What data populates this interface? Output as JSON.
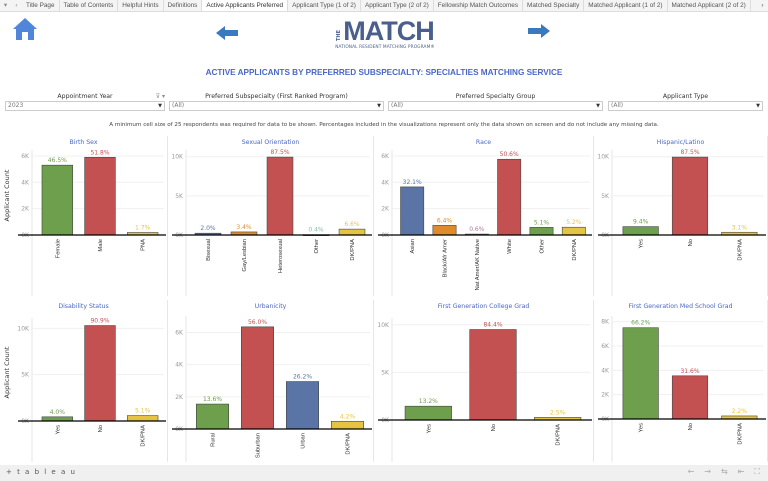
{
  "tabs": {
    "items": [
      "Title Page",
      "Table of Contents",
      "Helpful Hints",
      "Definitions",
      "Active Applicants Preferred",
      "Applicant Type (1 of 2)",
      "Applicant Type (2 of 2)",
      "Fellowship Match Outcomes",
      "Matched Specialty",
      "Matched Applicant (1 of 2)",
      "Matched Applicant (2 of 2)"
    ],
    "active": 4
  },
  "logo": {
    "the": "THE",
    "main": "MATCH",
    "sub": "NATIONAL RESIDENT MATCHING PROGRAM®"
  },
  "page_title": "ACTIVE APPLICANTS BY PREFERRED SUBSPECIALTY: SPECIALTIES MATCHING SERVICE",
  "filters": [
    {
      "label": "Appointment Year",
      "value": "2023"
    },
    {
      "label": "Preferred Subspecialty (First Ranked Program)",
      "value": "(All)"
    },
    {
      "label": "Preferred Specialty Group",
      "value": "(All)"
    },
    {
      "label": "Applicant Type",
      "value": "(All)"
    }
  ],
  "note": "A minimum cell size of 25 respondents was required for data to be shown. Percentages included in the visualizations represent only the data shown on screen and do not include any missing data.",
  "colors": {
    "green": "#6e9f4d",
    "red": "#c45151",
    "yellow": "#e6c443",
    "orange": "#df8b2b",
    "blue": "#5a75a5",
    "title": "#4a67c8"
  },
  "chart_data": [
    {
      "type": "bar",
      "title": "Birth Sex",
      "ylabel": "Applicant Count",
      "ylim": [
        0,
        6300
      ],
      "ticks": [
        "0K",
        "2K",
        "4K",
        "6K"
      ],
      "tick_values": [
        0,
        2000,
        4000,
        6000
      ],
      "categories": [
        "Female",
        "Male",
        "PNA"
      ],
      "values": [
        5300,
        5900,
        190
      ],
      "labels": [
        "46.5%",
        "51.8%",
        "1.7%"
      ],
      "colors": [
        "#6e9f4d",
        "#c45151",
        "#e6c443"
      ]
    },
    {
      "type": "bar",
      "title": "Sexual Orientation",
      "ylim": [
        0,
        10600
      ],
      "ticks": [
        "0K",
        "5K",
        "10K"
      ],
      "tick_values": [
        0,
        5000,
        10000
      ],
      "categories": [
        "Bisexual",
        "Gay/Lesbian",
        "Heterosexual",
        "Other",
        "DK/PNA"
      ],
      "values": [
        230,
        390,
        9950,
        45,
        750
      ],
      "labels": [
        "2.0%",
        "3.4%",
        "87.5%",
        "0.4%",
        "6.6%"
      ],
      "colors": [
        "#5a75a5",
        "#df8b2b",
        "#c45151",
        "#86bcb6",
        "#e6c443"
      ]
    },
    {
      "type": "bar",
      "title": "Race",
      "ylim": [
        0,
        6300
      ],
      "ticks": [
        "0K",
        "2K",
        "4K",
        "6K"
      ],
      "tick_values": [
        0,
        2000,
        4000,
        6000
      ],
      "categories": [
        "Asian",
        "Black/Afr Amer",
        "Nat Amer/AK Native",
        "White",
        "Other",
        "DK/PNA"
      ],
      "values": [
        3650,
        730,
        70,
        5750,
        580,
        590
      ],
      "labels": [
        "32.1%",
        "6.4%",
        "0.6%",
        "50.6%",
        "5.1%",
        "5.2%"
      ],
      "colors": [
        "#5a75a5",
        "#df8b2b",
        "#b07aa1",
        "#c45151",
        "#6e9f4d",
        "#e6c443"
      ]
    },
    {
      "type": "bar",
      "title": "Hispanic/Latino",
      "ylim": [
        0,
        10600
      ],
      "ticks": [
        "0K",
        "5K",
        "10K"
      ],
      "tick_values": [
        0,
        5000,
        10000
      ],
      "categories": [
        "Yes",
        "No",
        "DK/PNA"
      ],
      "values": [
        1070,
        9950,
        350
      ],
      "labels": [
        "9.4%",
        "87.5%",
        "3.1%"
      ],
      "colors": [
        "#6e9f4d",
        "#c45151",
        "#e6c443"
      ]
    },
    {
      "type": "bar",
      "title": "Disability Status",
      "ylabel": "Applicant Count",
      "ylim": [
        0,
        10900
      ],
      "ticks": [
        "0K",
        "5K",
        "10K"
      ],
      "tick_values": [
        0,
        5000,
        10000
      ],
      "categories": [
        "Yes",
        "No",
        "DK/PNA"
      ],
      "values": [
        450,
        10300,
        580
      ],
      "labels": [
        "4.0%",
        "90.9%",
        "5.1%"
      ],
      "colors": [
        "#6e9f4d",
        "#c45151",
        "#e6c443"
      ]
    },
    {
      "type": "bar",
      "title": "Urbanicity",
      "ylim": [
        0,
        6900
      ],
      "ticks": [
        "0K",
        "2K",
        "4K",
        "6K"
      ],
      "tick_values": [
        0,
        2000,
        4000,
        6000
      ],
      "categories": [
        "Rural",
        "Suburban",
        "Urban",
        "DK/PNA"
      ],
      "values": [
        1550,
        6350,
        2950,
        480
      ],
      "labels": [
        "13.6%",
        "56.0%",
        "26.2%",
        "4.2%"
      ],
      "colors": [
        "#6e9f4d",
        "#c45151",
        "#5a75a5",
        "#e6c443"
      ]
    },
    {
      "type": "bar",
      "title": "First Generation College Grad",
      "ylim": [
        0,
        10500
      ],
      "ticks": [
        "0K",
        "5K",
        "10K"
      ],
      "tick_values": [
        0,
        5000,
        10000
      ],
      "categories": [
        "Yes",
        "No",
        "DK/PNA"
      ],
      "values": [
        1450,
        9500,
        280
      ],
      "labels": [
        "13.2%",
        "84.4%",
        "2.5%"
      ],
      "colors": [
        "#6e9f4d",
        "#c45151",
        "#e6c443"
      ]
    },
    {
      "type": "bar",
      "title": "First Generation Med School Grad",
      "ylim": [
        0,
        8300
      ],
      "ticks": [
        "0K",
        "2K",
        "4K",
        "6K",
        "8K"
      ],
      "tick_values": [
        0,
        2000,
        4000,
        6000,
        8000
      ],
      "categories": [
        "Yes",
        "No",
        "DK/PNA"
      ],
      "values": [
        7500,
        3550,
        250
      ],
      "labels": [
        "66.2%",
        "31.6%",
        "2.2%"
      ],
      "colors": [
        "#6e9f4d",
        "#c45151",
        "#e6c443"
      ]
    }
  ],
  "toolbar": {
    "brand": "+ t a b l e a u",
    "undo": "←",
    "redo": "→",
    "revert": "⇆",
    "pause": "⇤",
    "fullscreen": "⛶"
  }
}
